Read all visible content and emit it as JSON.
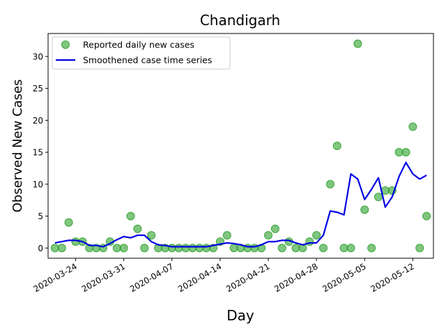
{
  "chart_data": {
    "type": "scatter",
    "title": "Chandigarh",
    "xlabel": "Day",
    "ylabel": "Observed New Cases",
    "xlim": [
      "2020-03-20",
      "2020-05-15"
    ],
    "ylim": [
      -1.6,
      33.6
    ],
    "x_ticks": [
      "2020-03-24",
      "2020-03-31",
      "2020-04-07",
      "2020-04-14",
      "2020-04-21",
      "2020-04-28",
      "2020-05-05",
      "2020-05-12"
    ],
    "y_ticks": [
      0,
      5,
      10,
      15,
      20,
      25,
      30
    ],
    "legend_position": "top-left",
    "grid": false,
    "x_start_date": "2020-03-21",
    "series": [
      {
        "name": "Reported daily new cases",
        "kind": "scatter",
        "color": "#2ca02c",
        "values": [
          0,
          0,
          4,
          1,
          1,
          0,
          0,
          0,
          1,
          0,
          0,
          5,
          3,
          0,
          2,
          0,
          0,
          0,
          0,
          0,
          0,
          0,
          0,
          0,
          1,
          2,
          0,
          0,
          0,
          0,
          0,
          2,
          3,
          0,
          1,
          0,
          0,
          1,
          2,
          0,
          10,
          16,
          0,
          0,
          32,
          6,
          0,
          8,
          9,
          9,
          15,
          15,
          19,
          0,
          5
        ]
      },
      {
        "name": "Smoothened case time series",
        "kind": "line",
        "color": "#0000e6",
        "values": [
          0.8,
          1.0,
          1.2,
          1.2,
          1.0,
          0.4,
          0.4,
          0.2,
          0.7,
          1.3,
          1.8,
          1.6,
          2.0,
          2.0,
          1.0,
          0.5,
          0.4,
          0.2,
          0.2,
          0.2,
          0.2,
          0.2,
          0.2,
          0.4,
          0.6,
          0.8,
          0.7,
          0.5,
          0.2,
          0.2,
          0.5,
          1.0,
          1.0,
          1.2,
          1.2,
          0.8,
          0.5,
          0.8,
          0.8,
          2.0,
          5.8,
          5.6,
          5.2,
          11.6,
          10.8,
          7.6,
          9.2,
          11.0,
          6.4,
          8.0,
          11.2,
          13.4,
          11.6,
          10.8,
          11.4
        ]
      }
    ]
  }
}
